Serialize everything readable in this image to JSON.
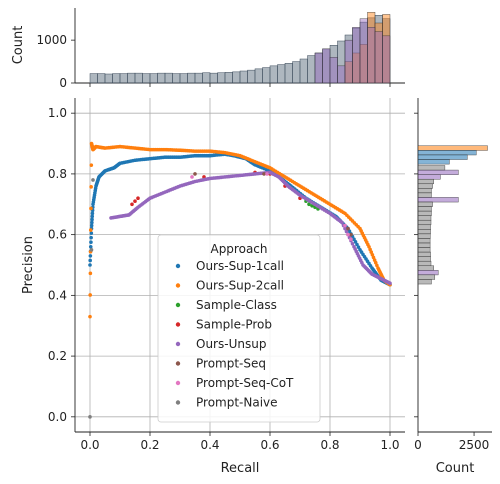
{
  "chart_data": {
    "type": "scatter",
    "xlabel": "Recall",
    "ylabel": "Precision",
    "xlim": [
      -0.05,
      1.05
    ],
    "ylim": [
      -0.05,
      1.05
    ],
    "xticks": [
      "0.0",
      "0.2",
      "0.4",
      "0.6",
      "0.8",
      "1.0"
    ],
    "yticks": [
      "0.0",
      "0.2",
      "0.4",
      "0.6",
      "0.8",
      "1.0"
    ],
    "grid": true,
    "legend": {
      "title": "Approach",
      "placement": "lower-center"
    },
    "series": [
      {
        "name": "Ours-Sup-1call",
        "color": "#1f77b4",
        "points": [
          [
            0,
            0.5
          ],
          [
            0.005,
            0.62
          ],
          [
            0.01,
            0.7
          ],
          [
            0.02,
            0.76
          ],
          [
            0.03,
            0.79
          ],
          [
            0.05,
            0.81
          ],
          [
            0.08,
            0.82
          ],
          [
            0.1,
            0.835
          ],
          [
            0.15,
            0.845
          ],
          [
            0.2,
            0.85
          ],
          [
            0.25,
            0.855
          ],
          [
            0.3,
            0.855
          ],
          [
            0.35,
            0.86
          ],
          [
            0.4,
            0.86
          ],
          [
            0.45,
            0.865
          ],
          [
            0.48,
            0.86
          ],
          [
            0.52,
            0.85
          ],
          [
            0.55,
            0.83
          ],
          [
            0.6,
            0.81
          ],
          [
            0.63,
            0.79
          ],
          [
            0.67,
            0.76
          ],
          [
            0.72,
            0.72
          ],
          [
            0.77,
            0.69
          ],
          [
            0.82,
            0.66
          ],
          [
            0.86,
            0.62
          ],
          [
            0.9,
            0.55
          ],
          [
            0.94,
            0.49
          ],
          [
            0.97,
            0.45
          ],
          [
            1.0,
            0.435
          ]
        ]
      },
      {
        "name": "Ours-Sup-2call",
        "color": "#ff7f0e",
        "points": [
          [
            0,
            0.33
          ],
          [
            0.005,
            0.9
          ],
          [
            0.01,
            0.88
          ],
          [
            0.02,
            0.89
          ],
          [
            0.05,
            0.885
          ],
          [
            0.1,
            0.89
          ],
          [
            0.15,
            0.885
          ],
          [
            0.2,
            0.88
          ],
          [
            0.25,
            0.88
          ],
          [
            0.3,
            0.878
          ],
          [
            0.35,
            0.875
          ],
          [
            0.4,
            0.875
          ],
          [
            0.45,
            0.87
          ],
          [
            0.5,
            0.86
          ],
          [
            0.55,
            0.84
          ],
          [
            0.6,
            0.82
          ],
          [
            0.65,
            0.79
          ],
          [
            0.7,
            0.76
          ],
          [
            0.75,
            0.73
          ],
          [
            0.8,
            0.7
          ],
          [
            0.85,
            0.67
          ],
          [
            0.9,
            0.62
          ],
          [
            0.93,
            0.56
          ],
          [
            0.96,
            0.49
          ],
          [
            0.98,
            0.45
          ],
          [
            1.0,
            0.435
          ]
        ]
      },
      {
        "name": "Sample-Class",
        "color": "#2ca02c",
        "points": [
          [
            0.72,
            0.71
          ],
          [
            0.73,
            0.7
          ],
          [
            0.74,
            0.695
          ],
          [
            0.75,
            0.69
          ],
          [
            0.76,
            0.685
          ]
        ]
      },
      {
        "name": "Sample-Prob",
        "color": "#d62728",
        "points": [
          [
            0.14,
            0.7
          ],
          [
            0.15,
            0.71
          ],
          [
            0.16,
            0.72
          ],
          [
            0.38,
            0.79
          ],
          [
            0.55,
            0.805
          ],
          [
            0.6,
            0.8
          ],
          [
            0.65,
            0.76
          ],
          [
            0.7,
            0.72
          ]
        ]
      },
      {
        "name": "Ours-Unsup",
        "color": "#9467bd",
        "points": [
          [
            0.07,
            0.655
          ],
          [
            0.1,
            0.66
          ],
          [
            0.13,
            0.665
          ],
          [
            0.16,
            0.69
          ],
          [
            0.2,
            0.72
          ],
          [
            0.25,
            0.74
          ],
          [
            0.3,
            0.76
          ],
          [
            0.35,
            0.775
          ],
          [
            0.4,
            0.785
          ],
          [
            0.45,
            0.79
          ],
          [
            0.5,
            0.795
          ],
          [
            0.55,
            0.8
          ],
          [
            0.6,
            0.805
          ],
          [
            0.63,
            0.79
          ],
          [
            0.66,
            0.76
          ],
          [
            0.7,
            0.73
          ],
          [
            0.75,
            0.7
          ],
          [
            0.8,
            0.67
          ],
          [
            0.84,
            0.64
          ],
          [
            0.88,
            0.56
          ],
          [
            0.91,
            0.5
          ],
          [
            0.94,
            0.47
          ],
          [
            0.97,
            0.455
          ],
          [
            1.0,
            0.44
          ]
        ]
      },
      {
        "name": "Prompt-Seq",
        "color": "#8c564b",
        "points": [
          [
            0.35,
            0.8
          ],
          [
            0.58,
            0.8
          ],
          [
            0.86,
            0.62
          ],
          [
            0.87,
            0.6
          ]
        ]
      },
      {
        "name": "Prompt-Seq-CoT",
        "color": "#e377c2",
        "points": [
          [
            0.34,
            0.79
          ],
          [
            0.59,
            0.8
          ],
          [
            0.85,
            0.63
          ],
          [
            0.86,
            0.6
          ],
          [
            0.87,
            0.585
          ]
        ]
      },
      {
        "name": "Prompt-Naive",
        "color": "#7f7f7f",
        "points": [
          [
            0,
            0.0
          ],
          [
            0.005,
            0.55
          ],
          [
            0.01,
            0.78
          ]
        ]
      }
    ],
    "top_histogram": {
      "ylabel": "Count",
      "yticks": [
        "0",
        "1000"
      ],
      "ylim": [
        0,
        1750
      ],
      "bins": 40,
      "total_counts": [
        220,
        220,
        210,
        220,
        220,
        230,
        230,
        220,
        220,
        230,
        230,
        220,
        220,
        230,
        230,
        240,
        230,
        240,
        250,
        260,
        280,
        300,
        330,
        360,
        400,
        430,
        460,
        500,
        560,
        640,
        700,
        780,
        880,
        980,
        1120,
        1280,
        1420,
        1520,
        1580,
        1500
      ],
      "overlay": [
        {
          "color": "#ff7f0e",
          "counts": [
            0,
            0,
            0,
            0,
            0,
            0,
            0,
            0,
            0,
            0,
            0,
            0,
            0,
            0,
            0,
            0,
            0,
            0,
            0,
            0,
            0,
            0,
            0,
            0,
            0,
            0,
            0,
            0,
            0,
            0,
            0,
            0,
            0,
            0,
            500,
            700,
            900,
            1650,
            1400,
            1600
          ]
        },
        {
          "color": "#9467bd",
          "counts": [
            0,
            0,
            0,
            0,
            0,
            0,
            0,
            0,
            0,
            0,
            0,
            0,
            0,
            0,
            0,
            0,
            0,
            0,
            0,
            0,
            0,
            0,
            0,
            0,
            0,
            0,
            0,
            0,
            0,
            0,
            700,
            800,
            600,
            400,
            1000,
            1300,
            1500,
            1300,
            1200,
            1100
          ]
        }
      ]
    },
    "right_histogram": {
      "xlabel": "Count",
      "xticks": [
        "0",
        "2500"
      ],
      "xlim": [
        0,
        3300
      ],
      "bins": 40,
      "ylim": [
        -0.05,
        1.05
      ],
      "bars": [
        {
          "y": 0.885,
          "count": 3100,
          "color": "#ff7f0e"
        },
        {
          "y": 0.87,
          "count": 2600,
          "color": "#1f77b4"
        },
        {
          "y": 0.855,
          "count": 2200,
          "color": "#1f77b4"
        },
        {
          "y": 0.84,
          "count": 1400,
          "color": "#1f77b4"
        },
        {
          "y": 0.82,
          "count": 1200,
          "color": "#7f7f7f"
        },
        {
          "y": 0.805,
          "count": 1800,
          "color": "#9467bd"
        },
        {
          "y": 0.79,
          "count": 1000,
          "color": "#9467bd"
        },
        {
          "y": 0.775,
          "count": 700,
          "color": "#7f7f7f"
        },
        {
          "y": 0.76,
          "count": 650,
          "color": "#7f7f7f"
        },
        {
          "y": 0.745,
          "count": 600,
          "color": "#7f7f7f"
        },
        {
          "y": 0.73,
          "count": 600,
          "color": "#7f7f7f"
        },
        {
          "y": 0.715,
          "count": 1800,
          "color": "#9467bd"
        },
        {
          "y": 0.7,
          "count": 650,
          "color": "#7f7f7f"
        },
        {
          "y": 0.685,
          "count": 600,
          "color": "#7f7f7f"
        },
        {
          "y": 0.67,
          "count": 600,
          "color": "#7f7f7f"
        },
        {
          "y": 0.655,
          "count": 580,
          "color": "#7f7f7f"
        },
        {
          "y": 0.64,
          "count": 580,
          "color": "#7f7f7f"
        },
        {
          "y": 0.625,
          "count": 560,
          "color": "#7f7f7f"
        },
        {
          "y": 0.61,
          "count": 560,
          "color": "#7f7f7f"
        },
        {
          "y": 0.595,
          "count": 550,
          "color": "#7f7f7f"
        },
        {
          "y": 0.58,
          "count": 540,
          "color": "#7f7f7f"
        },
        {
          "y": 0.565,
          "count": 540,
          "color": "#7f7f7f"
        },
        {
          "y": 0.55,
          "count": 540,
          "color": "#7f7f7f"
        },
        {
          "y": 0.535,
          "count": 560,
          "color": "#7f7f7f"
        },
        {
          "y": 0.52,
          "count": 560,
          "color": "#7f7f7f"
        },
        {
          "y": 0.505,
          "count": 580,
          "color": "#7f7f7f"
        },
        {
          "y": 0.49,
          "count": 700,
          "color": "#7f7f7f"
        },
        {
          "y": 0.475,
          "count": 900,
          "color": "#9467bd"
        },
        {
          "y": 0.46,
          "count": 750,
          "color": "#7f7f7f"
        },
        {
          "y": 0.445,
          "count": 600,
          "color": "#7f7f7f"
        }
      ]
    }
  }
}
